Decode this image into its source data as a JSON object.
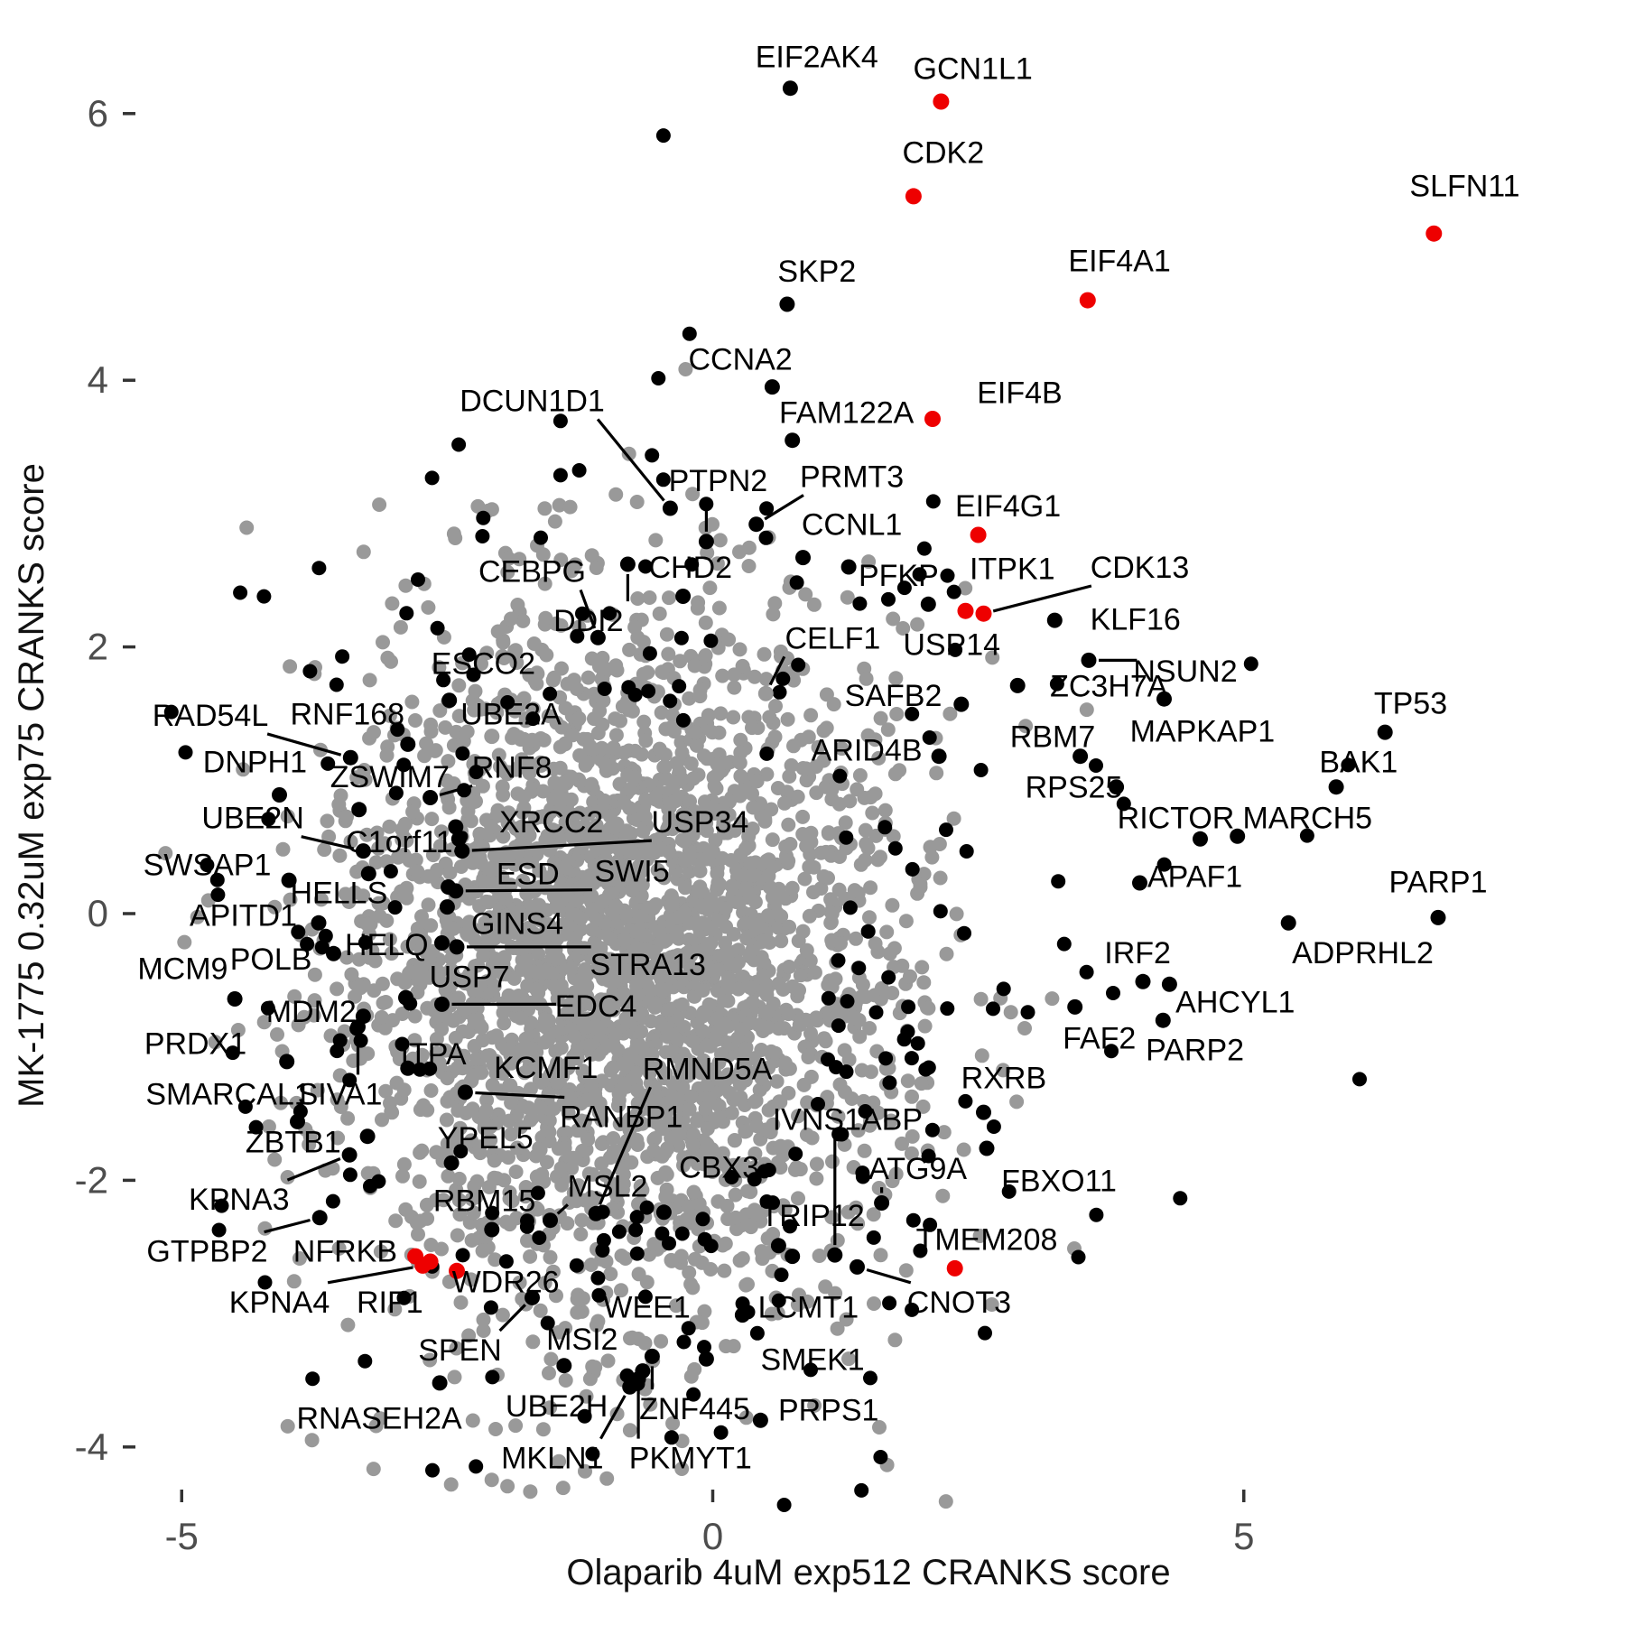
{
  "chart_data": {
    "type": "scatter",
    "title": "",
    "xlabel": "Olaparib 4uM exp512 CRANKS score",
    "ylabel": "MK-1775 0.32uM exp75 CRANKS score",
    "x_ticks": [
      -5,
      0,
      5
    ],
    "y_ticks": [
      -4,
      -2,
      0,
      2,
      4,
      6
    ],
    "xlim": [
      -5.6,
      8.2
    ],
    "ylim": [
      -4.45,
      6.6
    ],
    "grid": false,
    "legend": false,
    "colors": {
      "highlight": "#ee0000",
      "point": "#000000",
      "cloud": "#999999",
      "axis_text": "#4d4d4d",
      "tick_mark": "#333333"
    },
    "background_cloud": {
      "gray_core": {
        "n": 2800,
        "cx": -0.89,
        "cy": -0.32,
        "sx": 1.3,
        "sy": 1.27,
        "seed": 42
      },
      "gray_fringe": {
        "n": 150,
        "cx": -0.89,
        "cy": -0.32,
        "sx": 1.75,
        "sy": 1.62,
        "seed": 1234
      },
      "black_ring": {
        "n": 235,
        "cx": -0.45,
        "cy": -0.3,
        "sx": 2.0,
        "sy": 1.92,
        "exclude": {
          "cx": -0.89,
          "cy": -0.32,
          "a": 1.95,
          "b": 1.85
        },
        "seed": 7
      }
    },
    "genes": [
      {
        "n": "EIF2AK4",
        "x": 0.73,
        "y": 6.19,
        "lx": 0.98,
        "ly": 6.43,
        "c": "b"
      },
      {
        "n": "GCN1L1",
        "x": 2.15,
        "y": 6.09,
        "lx": 2.45,
        "ly": 6.34,
        "c": "r"
      },
      {
        "n": "CDK2",
        "x": 1.89,
        "y": 5.38,
        "lx": 2.17,
        "ly": 5.71,
        "c": "r"
      },
      {
        "n": "SLFN11",
        "x": 6.79,
        "y": 5.1,
        "lx": 7.08,
        "ly": 5.46,
        "c": "r"
      },
      {
        "n": "SKP2",
        "x": 0.7,
        "y": 4.57,
        "lx": 0.98,
        "ly": 4.82,
        "c": "b"
      },
      {
        "n": "EIF4A1",
        "x": 3.53,
        "y": 4.6,
        "lx": 3.83,
        "ly": 4.9,
        "c": "r"
      },
      {
        "n": "CCNA2",
        "x": 0.56,
        "y": 3.95,
        "lx": 0.26,
        "ly": 4.16,
        "c": "b"
      },
      {
        "n": "FAM122A",
        "x": 0.75,
        "y": 3.55,
        "lx": 1.26,
        "ly": 3.76,
        "c": "b"
      },
      {
        "n": "EIF4B",
        "x": 2.07,
        "y": 3.71,
        "lx": 2.89,
        "ly": 3.91,
        "c": "r"
      },
      {
        "n": "DCUN1D1",
        "x": -0.4,
        "y": 3.04,
        "lx": -1.7,
        "ly": 3.85,
        "c": "b",
        "line": true
      },
      {
        "n": "PTPN2",
        "x": -0.06,
        "y": 2.79,
        "lx": 0.05,
        "ly": 3.25,
        "c": "b",
        "line": true
      },
      {
        "n": "PRMT3",
        "x": 0.41,
        "y": 2.92,
        "lx": 1.31,
        "ly": 3.28,
        "c": "b",
        "line": true
      },
      {
        "n": "CCNL1",
        "x": 0.85,
        "y": 2.67,
        "lx": 1.31,
        "ly": 2.92,
        "c": "b"
      },
      {
        "n": "EIF4G1",
        "x": 2.5,
        "y": 2.84,
        "lx": 2.78,
        "ly": 3.06,
        "c": "r"
      },
      {
        "n": "CEBPG",
        "x": -1.08,
        "y": 2.07,
        "lx": -1.7,
        "ly": 2.57,
        "c": "b",
        "line": true
      },
      {
        "n": "CHD2",
        "x": -0.28,
        "y": 2.38,
        "lx": -0.21,
        "ly": 2.6,
        "c": "b"
      },
      {
        "n": "DDI2",
        "x": -0.8,
        "y": 2.62,
        "lx": -1.17,
        "ly": 2.2,
        "c": "b",
        "line": true
      },
      {
        "n": "PFKP",
        "x": 1.28,
        "y": 2.6,
        "lx": 1.75,
        "ly": 2.54,
        "c": "b"
      },
      {
        "n": "ITPK1",
        "x": 2.38,
        "y": 2.27,
        "lx": 2.82,
        "ly": 2.59,
        "c": "r"
      },
      {
        "n": "CDK13",
        "x": 2.55,
        "y": 2.25,
        "lx": 4.02,
        "ly": 2.6,
        "c": "r",
        "line": true
      },
      {
        "n": "KLF16",
        "x": 3.22,
        "y": 2.2,
        "lx": 3.98,
        "ly": 2.21,
        "c": "b"
      },
      {
        "n": "USP14",
        "x": 2.03,
        "y": 2.32,
        "lx": 2.25,
        "ly": 2.02,
        "c": "b"
      },
      {
        "n": "CELF1",
        "x": 0.5,
        "y": 1.65,
        "lx": 1.13,
        "ly": 2.07,
        "c": "g",
        "line": true
      },
      {
        "n": "ESCO2",
        "x": -2.48,
        "y": 1.6,
        "lx": -2.16,
        "ly": 1.88,
        "c": "b"
      },
      {
        "n": "UBE2A",
        "x": -2.08,
        "y": 1.33,
        "lx": -1.9,
        "ly": 1.5,
        "c": "g"
      },
      {
        "n": "RAD54L",
        "x": -3.41,
        "y": 1.17,
        "lx": -4.73,
        "ly": 1.49,
        "c": "b",
        "line": true
      },
      {
        "n": "RNF168",
        "x": -2.87,
        "y": 1.27,
        "lx": -3.44,
        "ly": 1.5,
        "c": "b"
      },
      {
        "n": "DNPH1",
        "x": -4.08,
        "y": 0.89,
        "lx": -4.31,
        "ly": 1.14,
        "c": "b"
      },
      {
        "n": "ZSWIM7",
        "x": -3.33,
        "y": 0.78,
        "lx": -3.04,
        "ly": 1.03,
        "c": "b"
      },
      {
        "n": "RNF8",
        "x": -2.66,
        "y": 0.87,
        "lx": -1.89,
        "ly": 1.1,
        "c": "b",
        "line": true
      },
      {
        "n": "UBE2N",
        "x": -3.29,
        "y": 0.47,
        "lx": -4.33,
        "ly": 0.72,
        "c": "b",
        "line": true
      },
      {
        "n": "C1orf112",
        "x": -2.39,
        "y": 0.56,
        "lx": -2.87,
        "ly": 0.54,
        "c": "b"
      },
      {
        "n": "XRCC2",
        "x": -2.42,
        "y": 0.65,
        "lx": -1.52,
        "ly": 0.69,
        "c": "b"
      },
      {
        "n": "USP34",
        "x": -2.36,
        "y": 0.47,
        "lx": -0.12,
        "ly": 0.69,
        "c": "b",
        "line": true
      },
      {
        "n": "SWSAP1",
        "x": -3.99,
        "y": 0.25,
        "lx": -4.76,
        "ly": 0.37,
        "c": "b"
      },
      {
        "n": "ESD",
        "x": -2.49,
        "y": 0.2,
        "lx": -1.74,
        "ly": 0.3,
        "c": "b"
      },
      {
        "n": "SWI5",
        "x": -2.42,
        "y": 0.17,
        "lx": -0.76,
        "ly": 0.32,
        "c": "b",
        "line": true
      },
      {
        "n": "HELLS",
        "x": -3.24,
        "y": 0.3,
        "lx": -3.52,
        "ly": 0.16,
        "c": "b"
      },
      {
        "n": "APITD1",
        "x": -3.71,
        "y": -0.07,
        "lx": -4.42,
        "ly": -0.01,
        "c": "b"
      },
      {
        "n": "GINS4",
        "x": -2.5,
        "y": 0.05,
        "lx": -1.84,
        "ly": -0.07,
        "c": "b"
      },
      {
        "n": "MCM9",
        "x": -4.5,
        "y": -0.64,
        "lx": -4.99,
        "ly": -0.41,
        "c": "b"
      },
      {
        "n": "POLB",
        "x": -3.57,
        "y": -0.3,
        "lx": -4.16,
        "ly": -0.34,
        "c": "b"
      },
      {
        "n": "HELQ",
        "x": -2.55,
        "y": -0.22,
        "lx": -3.07,
        "ly": -0.23,
        "c": "b"
      },
      {
        "n": "STRA13",
        "x": -2.41,
        "y": -0.25,
        "lx": -0.61,
        "ly": -0.38,
        "c": "b",
        "line": true
      },
      {
        "n": "USP7",
        "x": -2.89,
        "y": -0.63,
        "lx": -2.29,
        "ly": -0.47,
        "c": "b"
      },
      {
        "n": "MDM2",
        "x": -3.29,
        "y": -0.77,
        "lx": -3.78,
        "ly": -0.73,
        "c": "b"
      },
      {
        "n": "EDC4",
        "x": -2.55,
        "y": -0.68,
        "lx": -1.1,
        "ly": -0.69,
        "c": "b",
        "line": true
      },
      {
        "n": "IRF2",
        "x": 4.05,
        "y": -0.51,
        "lx": 4.0,
        "ly": -0.29,
        "c": "b"
      },
      {
        "n": "ADPRHL2",
        "x": 5.42,
        "y": -0.07,
        "lx": 6.12,
        "ly": -0.29,
        "c": "b"
      },
      {
        "n": "PARP1",
        "x": 6.83,
        "y": -0.03,
        "lx": 6.83,
        "ly": 0.24,
        "c": "b"
      },
      {
        "n": "TP53",
        "x": 6.33,
        "y": 1.36,
        "lx": 6.57,
        "ly": 1.58,
        "c": "b"
      },
      {
        "n": "BAK1",
        "x": 5.87,
        "y": 0.95,
        "lx": 6.08,
        "ly": 1.14,
        "c": "b"
      },
      {
        "n": "MARCH5",
        "x": 4.94,
        "y": 0.58,
        "lx": 5.6,
        "ly": 0.72,
        "c": "b"
      },
      {
        "n": "RICTOR",
        "x": 4.59,
        "y": 0.56,
        "lx": 4.36,
        "ly": 0.72,
        "c": "b"
      },
      {
        "n": "MAPKAP1",
        "x": 4.25,
        "y": 1.61,
        "lx": 4.61,
        "ly": 1.37,
        "c": "b"
      },
      {
        "n": "NSUN2",
        "x": 3.54,
        "y": 1.9,
        "lx": 4.45,
        "ly": 1.82,
        "c": "b",
        "line": true
      },
      {
        "n": "ZC3H7A",
        "x": 2.87,
        "y": 1.71,
        "lx": 3.73,
        "ly": 1.71,
        "c": "b"
      },
      {
        "n": "RBM7",
        "x": 3.46,
        "y": 1.18,
        "lx": 3.2,
        "ly": 1.33,
        "c": "b"
      },
      {
        "n": "RPS25",
        "x": 3.8,
        "y": 0.95,
        "lx": 3.4,
        "ly": 0.95,
        "c": "b"
      },
      {
        "n": "SAFB2",
        "x": 2.34,
        "y": 1.57,
        "lx": 1.7,
        "ly": 1.64,
        "c": "b"
      },
      {
        "n": "ARID4B",
        "x": 2.13,
        "y": 1.18,
        "lx": 1.45,
        "ly": 1.23,
        "c": "b"
      },
      {
        "n": "APAF1",
        "x": 4.02,
        "y": 0.23,
        "lx": 4.54,
        "ly": 0.28,
        "c": "b"
      },
      {
        "n": "AHCYL1",
        "x": 4.3,
        "y": -0.53,
        "lx": 4.92,
        "ly": -0.66,
        "c": "b"
      },
      {
        "n": "FAF2",
        "x": 3.41,
        "y": -0.7,
        "lx": 3.64,
        "ly": -0.93,
        "c": "b"
      },
      {
        "n": "PARP2",
        "x": 4.24,
        "y": -0.8,
        "lx": 4.54,
        "ly": -1.02,
        "c": "b"
      },
      {
        "n": "PRDX1",
        "x": -4.01,
        "y": -1.11,
        "lx": -4.87,
        "ly": -0.97,
        "c": "b"
      },
      {
        "n": "SMARCAL1",
        "x": -3.91,
        "y": -1.56,
        "lx": -4.56,
        "ly": -1.35,
        "c": "b"
      },
      {
        "n": "SIVA1",
        "x": -3.34,
        "y": -0.85,
        "lx": -3.51,
        "ly": -1.35,
        "c": "b",
        "line": true
      },
      {
        "n": "ITPA",
        "x": -2.87,
        "y": -1.16,
        "lx": -2.63,
        "ly": -1.05,
        "c": "b"
      },
      {
        "n": "KCMF1",
        "x": -1.91,
        "y": -1.29,
        "lx": -1.57,
        "ly": -1.15,
        "c": "g"
      },
      {
        "n": "RMND5A",
        "x": -1.1,
        "y": -2.25,
        "lx": -0.05,
        "ly": -1.16,
        "c": "b",
        "line": true
      },
      {
        "n": "RANBP1",
        "x": -2.33,
        "y": -1.34,
        "lx": -0.86,
        "ly": -1.52,
        "c": "b",
        "line": true
      },
      {
        "n": "YPEL5",
        "x": -2.46,
        "y": -1.87,
        "lx": -2.14,
        "ly": -1.68,
        "c": "b"
      },
      {
        "n": "ZBTB1",
        "x": -3.25,
        "y": -1.67,
        "lx": -3.95,
        "ly": -1.71,
        "c": "b"
      },
      {
        "n": "KPNA3",
        "x": -3.42,
        "y": -1.81,
        "lx": -4.46,
        "ly": -2.14,
        "c": "b",
        "line": true
      },
      {
        "n": "RBM15",
        "x": -2.08,
        "y": -2.37,
        "lx": -2.15,
        "ly": -2.15,
        "c": "b"
      },
      {
        "n": "MSL2",
        "x": -1.53,
        "y": -2.3,
        "lx": -0.99,
        "ly": -2.04,
        "c": "b",
        "line": true
      },
      {
        "n": "CBX3",
        "x": -0.46,
        "y": -2.24,
        "lx": 0.06,
        "ly": -1.9,
        "c": "b"
      },
      {
        "n": "TRIP12",
        "x": 0.62,
        "y": -2.49,
        "lx": 0.94,
        "ly": -2.26,
        "c": "b"
      },
      {
        "n": "IVNS1ABP",
        "x": 1.15,
        "y": -2.56,
        "lx": 1.27,
        "ly": -1.54,
        "c": "b",
        "line": true
      },
      {
        "n": "ATG9A",
        "x": 1.59,
        "y": -2.17,
        "lx": 1.93,
        "ly": -1.91,
        "c": "b",
        "line": true
      },
      {
        "n": "FBXO11",
        "x": 2.58,
        "y": -1.76,
        "lx": 3.26,
        "ly": -2.0,
        "c": "b"
      },
      {
        "n": "RXRB",
        "x": 2.55,
        "y": -1.49,
        "lx": 2.74,
        "ly": -1.23,
        "c": "b"
      },
      {
        "n": "LCMT1",
        "x": 0.75,
        "y": -2.57,
        "lx": 0.9,
        "ly": -2.95,
        "c": "b"
      },
      {
        "n": "CNOT3",
        "x": 1.36,
        "y": -2.65,
        "lx": 2.32,
        "ly": -2.91,
        "c": "b",
        "line": true
      },
      {
        "n": "TMEM208",
        "x": 2.28,
        "y": -2.66,
        "lx": 2.58,
        "ly": -2.44,
        "c": "r"
      },
      {
        "n": "WEE1",
        "x": 0.28,
        "y": -3.01,
        "lx": -0.62,
        "ly": -2.95,
        "c": "b"
      },
      {
        "n": "SMEK1",
        "x": -0.06,
        "y": -3.34,
        "lx": 0.94,
        "ly": -3.34,
        "c": "b"
      },
      {
        "n": "PRPS1",
        "x": 0.45,
        "y": -3.8,
        "lx": 1.09,
        "ly": -3.72,
        "c": "b"
      },
      {
        "n": "GTPBP2",
        "x": -3.7,
        "y": -2.28,
        "lx": -4.76,
        "ly": -2.53,
        "c": "b",
        "line": true
      },
      {
        "n": "NFRKB",
        "x": -2.8,
        "y": -2.57,
        "lx": -3.46,
        "ly": -2.53,
        "c": "r"
      },
      {
        "n": "KPNA4",
        "x": -2.73,
        "y": -2.64,
        "lx": -4.08,
        "ly": -2.91,
        "c": "r",
        "line": true
      },
      {
        "n": "RIF1",
        "x": -2.66,
        "y": -2.61,
        "lx": -3.04,
        "ly": -2.91,
        "c": "r"
      },
      {
        "n": "WDR26",
        "x": -2.41,
        "y": -2.68,
        "lx": -1.95,
        "ly": -2.76,
        "c": "r"
      },
      {
        "n": "SPEN",
        "x": -1.7,
        "y": -2.88,
        "lx": -2.38,
        "ly": -3.27,
        "c": "b",
        "line": true
      },
      {
        "n": "MSI2",
        "x": -1.4,
        "y": -3.39,
        "lx": -1.23,
        "ly": -3.19,
        "c": "b"
      },
      {
        "n": "RNASEH2A",
        "x": -2.57,
        "y": -3.52,
        "lx": -3.14,
        "ly": -3.78,
        "c": "b"
      },
      {
        "n": "UBE2H",
        "x": -0.66,
        "y": -3.43,
        "lx": -1.47,
        "ly": -3.69,
        "c": "b"
      },
      {
        "n": "ZNF445",
        "x": -0.57,
        "y": -3.32,
        "lx": -0.17,
        "ly": -3.71,
        "c": "b",
        "line": true
      },
      {
        "n": "MKLN1",
        "x": -0.78,
        "y": -3.55,
        "lx": -1.51,
        "ly": -4.08,
        "c": "b",
        "line": true
      },
      {
        "n": "PKMYT1",
        "x": -0.7,
        "y": -3.49,
        "lx": -0.21,
        "ly": -4.08,
        "c": "b",
        "line": true
      }
    ]
  }
}
